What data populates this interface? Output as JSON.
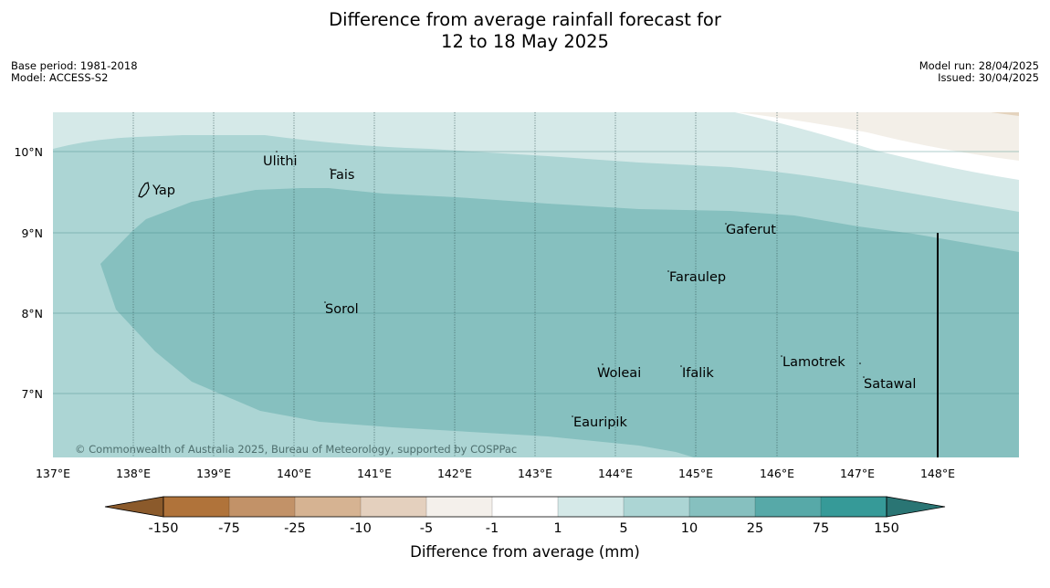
{
  "title": {
    "line1": "Difference from average rainfall forecast for",
    "line2": "12 to 18 May 2025"
  },
  "meta": {
    "base_period": "Base period: 1981-2018",
    "model": "Model: ACCESS-S2",
    "model_run": "Model run: 28/04/2025",
    "issued": "Issued: 30/04/2025"
  },
  "map": {
    "copyright": "© Commonwealth of Australia 2025, Bureau of Meteorology, supported by COSPPac",
    "lon_ticks": [
      "137°E",
      "138°E",
      "139°E",
      "140°E",
      "141°E",
      "142°E",
      "143°E",
      "144°E",
      "145°E",
      "146°E",
      "147°E",
      "148°E"
    ],
    "lat_ticks": [
      "10°N",
      "9°N",
      "8°N",
      "7°N"
    ],
    "places": [
      "Yap",
      "Ulithi",
      "Fais",
      "Gaferut",
      "Faraulep",
      "Sorol",
      "Woleai",
      "Ifalik",
      "Lamotrek",
      "Satawal",
      "Eauripik"
    ]
  },
  "legend": {
    "ticks": [
      "-150",
      "-75",
      "-25",
      "-10",
      "-5",
      "-1",
      "1",
      "5",
      "10",
      "25",
      "75",
      "150"
    ],
    "label": "Difference from average (mm)",
    "colors": [
      "#8b5a2b",
      "#b0733a",
      "#c29268",
      "#d6b392",
      "#e4d0be",
      "#f4f0eb",
      "#ffffff",
      "#d5e9e8",
      "#acd5d4",
      "#86c0bf",
      "#57a9a8",
      "#369a98",
      "#2a7574"
    ]
  }
}
